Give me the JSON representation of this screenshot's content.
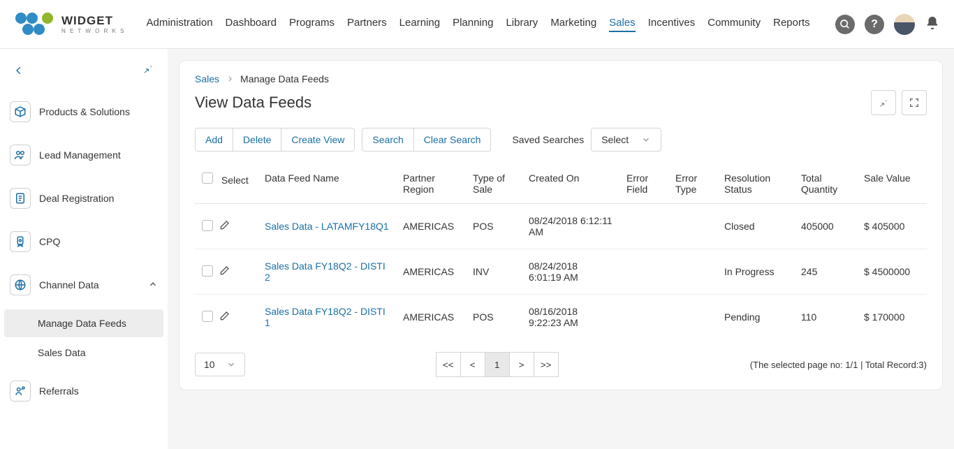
{
  "logo": {
    "main": "WIDGET",
    "sub": "N E T W O R K S"
  },
  "topnav": {
    "items": [
      "Administration",
      "Dashboard",
      "Programs",
      "Partners",
      "Learning",
      "Planning",
      "Library",
      "Marketing",
      "Sales",
      "Incentives",
      "Community",
      "Reports"
    ],
    "active": "Sales"
  },
  "sidebar": {
    "items": [
      {
        "label": "Products & Solutions"
      },
      {
        "label": "Lead Management"
      },
      {
        "label": "Deal Registration"
      },
      {
        "label": "CPQ"
      },
      {
        "label": "Channel Data",
        "expanded": true,
        "children": [
          {
            "label": "Manage Data Feeds",
            "active": true
          },
          {
            "label": "Sales Data"
          }
        ]
      },
      {
        "label": "Referrals"
      }
    ]
  },
  "breadcrumb": {
    "root": "Sales",
    "current": "Manage Data Feeds"
  },
  "page_title": "View Data Feeds",
  "toolbar": {
    "add": "Add",
    "delete": "Delete",
    "create_view": "Create View",
    "search": "Search",
    "clear_search": "Clear Search",
    "saved_searches": "Saved Searches",
    "select_label": "Select"
  },
  "table": {
    "headers": {
      "select": "Select",
      "name": "Data Feed Name",
      "region": "Partner Region",
      "type": "Type of Sale",
      "created": "Created On",
      "err_field": "Error Field",
      "err_type": "Error Type",
      "status": "Resolution Status",
      "qty": "Total Quantity",
      "value": "Sale Value"
    },
    "rows": [
      {
        "name": "Sales Data - LATAMFY18Q1",
        "region": "AMERICAS",
        "type": "POS",
        "created": "08/24/2018 6:12:11 AM",
        "err_field": "",
        "err_type": "",
        "status": "Closed",
        "qty": "405000",
        "value": "$ 405000"
      },
      {
        "name": "Sales Data FY18Q2 - DISTI 2",
        "region": "AMERICAS",
        "type": "INV",
        "created": "08/24/2018 6:01:19 AM",
        "err_field": "",
        "err_type": "",
        "status": "In Progress",
        "qty": "245",
        "value": "$ 4500000"
      },
      {
        "name": "Sales Data FY18Q2 - DISTI 1",
        "region": "AMERICAS",
        "type": "POS",
        "created": "08/16/2018 9:22:23 AM",
        "err_field": "",
        "err_type": "",
        "status": "Pending",
        "qty": "110",
        "value": "$ 170000"
      }
    ]
  },
  "pagination": {
    "page_size": "10",
    "first": "<<",
    "prev": "<",
    "current": "1",
    "next": ">",
    "last": ">>",
    "info": "(The selected page no: 1/1 | Total Record:3)"
  }
}
